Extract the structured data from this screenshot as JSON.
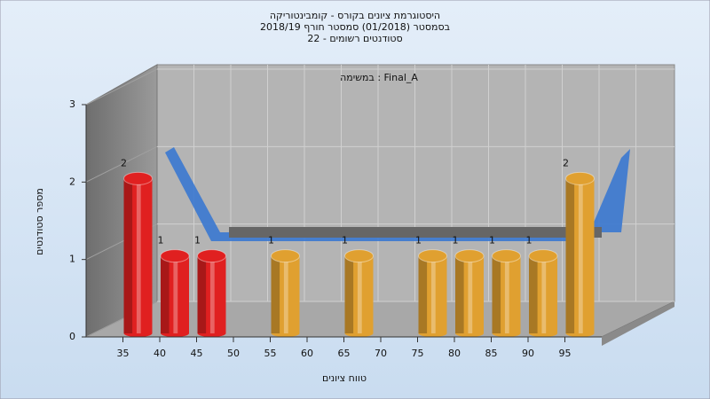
{
  "chart_data": {
    "type": "bar",
    "title": [
      "היסטוגרמת ציונים בקורס - קומבינטוריקה",
      "בסמסטר  (01/2018)  סמסטר חורף 2018/19",
      "סטודנטים רשומים - 22"
    ],
    "annotation": "במשימה : Final_A",
    "x_label": "טווח ציונים",
    "y_label": "מספר סטודנטים",
    "x": [
      35,
      40,
      45,
      55,
      65,
      75,
      80,
      85,
      90,
      95
    ],
    "values": [
      2,
      1,
      1,
      1,
      1,
      1,
      1,
      1,
      1,
      2
    ],
    "colors": [
      "#e02020",
      "#e02020",
      "#e02020",
      "#e0a030",
      "#e0a030",
      "#e0a030",
      "#e0a030",
      "#e0a030",
      "#e0a030",
      "#e0a030"
    ],
    "xlim": [
      30,
      100
    ],
    "xticks": [
      35,
      40,
      45,
      50,
      55,
      60,
      65,
      70,
      75,
      80,
      85,
      90,
      95
    ],
    "ylim": [
      0,
      3
    ],
    "yticks": [
      0,
      1,
      2,
      3
    ],
    "grid": true
  }
}
